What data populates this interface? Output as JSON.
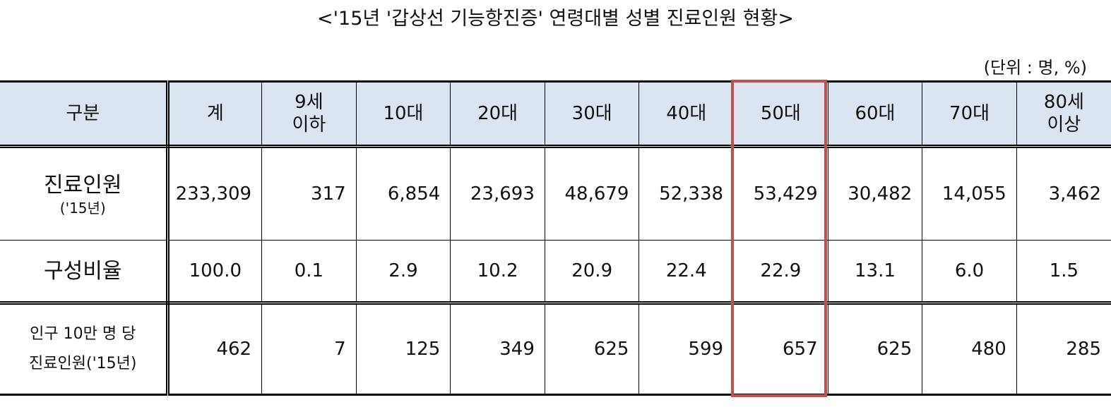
{
  "title": "<'15년 '갑상선 기능항진증' 연령대별 성별 진료인원 현황>",
  "unit": "(단위 : 명, %)",
  "table": {
    "header": [
      "구분",
      "계",
      "9세\n이하",
      "10대",
      "20대",
      "30대",
      "40대",
      "50대",
      "60대",
      "70대",
      "80세\n이상"
    ],
    "rows": [
      {
        "label": "진료인원",
        "sublabel": "('15년)",
        "values": [
          "233,309",
          "317",
          "6,854",
          "23,693",
          "48,679",
          "52,338",
          "53,429",
          "30,482",
          "14,055",
          "3,462"
        ]
      },
      {
        "label": "구성비율",
        "values": [
          "100.0",
          "0.1",
          "2.9",
          "10.2",
          "20.9",
          "22.4",
          "22.9",
          "13.1",
          "6.0",
          "1.5"
        ]
      },
      {
        "label": "인구 10만 명 당\n진료인원('15년)",
        "values": [
          "462",
          "7",
          "125",
          "349",
          "625",
          "599",
          "657",
          "625",
          "480",
          "285"
        ]
      }
    ]
  }
}
